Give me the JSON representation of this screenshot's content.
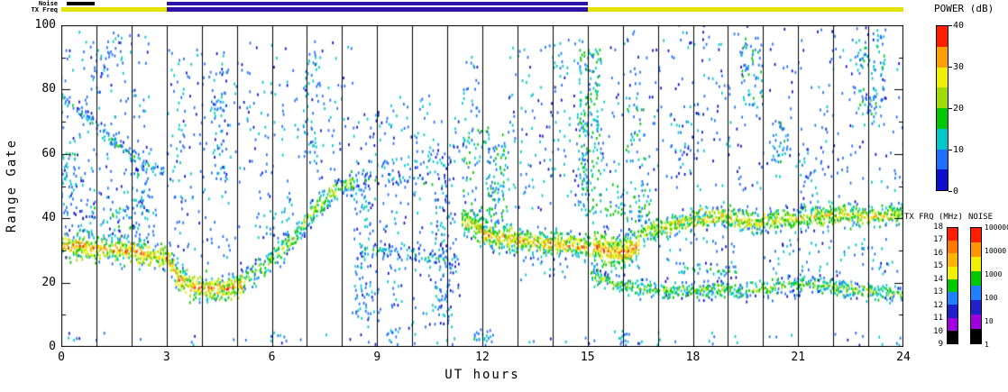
{
  "figure": {
    "x_title": "UT hours",
    "y_title": "Range Gate",
    "power_title": "POWER (dB)",
    "txfrq_title": "TX FRQ (MHz)",
    "noise_title": "NOISE",
    "noise_strip_label": "Noise",
    "tx_strip_label": "TX Freq"
  },
  "chart_data": {
    "type": "heatmap",
    "xlabel": "UT hours",
    "ylabel": "Range Gate",
    "xlim": [
      0,
      24
    ],
    "ylim": [
      0,
      100
    ],
    "x_ticks": [
      0,
      3,
      6,
      9,
      12,
      15,
      18,
      21,
      24
    ],
    "y_ticks": [
      0,
      20,
      40,
      60,
      80,
      100
    ],
    "x_gridline_interval_hours": 1,
    "render_seed": 1337,
    "colorbars": {
      "power": {
        "title": "POWER (dB)",
        "range": [
          0,
          40
        ],
        "ticks": [
          0,
          10,
          20,
          30,
          40
        ],
        "colors_low_to_high": [
          "#0E0ECD",
          "#1E6EFF",
          "#00C8C8",
          "#00C800",
          "#A0DC00",
          "#F0F000",
          "#FFA000",
          "#FF1E00"
        ]
      },
      "tx_frequency": {
        "title": "TX FRQ (MHz)",
        "range": [
          9,
          18
        ],
        "ticks": [
          9,
          10,
          11,
          12,
          13,
          14,
          15,
          16,
          17,
          18
        ],
        "colors_low_to_high": [
          "#000000",
          "#A000DC",
          "#2020C8",
          "#2080FF",
          "#00C800",
          "#F0F000",
          "#FFB400",
          "#FF7800",
          "#FF1E00"
        ]
      },
      "noise": {
        "title": "NOISE",
        "ticks": [
          1,
          10,
          100,
          1000,
          10000,
          100000
        ],
        "colors_low_to_high": [
          "#000000",
          "#A000DC",
          "#2020C8",
          "#2080FF",
          "#00C800",
          "#F0F000",
          "#FF9600",
          "#FF1E00"
        ]
      }
    },
    "noise_strip_segments": [
      {
        "h0": 0.15,
        "h1": 0.95,
        "color": "#000000"
      },
      {
        "h0": 3,
        "h1": 15,
        "color": "#2D12A8"
      }
    ],
    "tx_strip_segments": [
      {
        "h0": 0,
        "h1": 3,
        "color": "#E3E300"
      },
      {
        "h0": 3,
        "h1": 15,
        "color": "#2D12A8"
      },
      {
        "h0": 15,
        "h1": 24,
        "color": "#E3E300"
      }
    ],
    "echo_bands": [
      {
        "path": [
          [
            0,
            31
          ],
          [
            1.2,
            30
          ],
          [
            2.2,
            29
          ],
          [
            3.0,
            27
          ],
          [
            3.3,
            21
          ],
          [
            3.7,
            18
          ],
          [
            4.6,
            17.5
          ],
          [
            5.2,
            19
          ]
        ],
        "width": 4,
        "density": 0.85,
        "power_mean": 30,
        "power_spread": 9
      },
      {
        "path": [
          [
            5.2,
            20
          ],
          [
            6,
            27
          ],
          [
            6.6,
            33
          ],
          [
            7.1,
            41
          ],
          [
            7.7,
            47
          ],
          [
            8.3,
            51
          ]
        ],
        "width": 4,
        "density": 0.6,
        "power_mean": 22,
        "power_spread": 8
      },
      {
        "path": [
          [
            8.3,
            51
          ],
          [
            9.6,
            52
          ],
          [
            10.6,
            50
          ]
        ],
        "width": 3,
        "density": 0.22,
        "power_mean": 11,
        "power_spread": 6
      },
      {
        "path": [
          [
            8.5,
            30
          ],
          [
            9.5,
            29
          ],
          [
            10.6,
            27
          ],
          [
            11.3,
            26
          ]
        ],
        "width": 3,
        "density": 0.3,
        "power_mean": 12,
        "power_spread": 7
      },
      {
        "path": [
          [
            11.4,
            39
          ],
          [
            12.0,
            35
          ],
          [
            12.8,
            33
          ],
          [
            13.6,
            32
          ],
          [
            14.5,
            31
          ],
          [
            15.05,
            30
          ]
        ],
        "width": 4,
        "density": 0.85,
        "power_mean": 28,
        "power_spread": 9
      },
      {
        "path": [
          [
            15.15,
            31
          ],
          [
            15.6,
            29
          ],
          [
            16.0,
            29
          ],
          [
            16.45,
            31
          ]
        ],
        "width": 5.5,
        "density": 0.95,
        "power_mean": 33,
        "power_spread": 7
      },
      {
        "path": [
          [
            16.5,
            35
          ],
          [
            17.2,
            37
          ],
          [
            18,
            39
          ],
          [
            19,
            40
          ],
          [
            19.8,
            38
          ],
          [
            20.6,
            39
          ],
          [
            21.4,
            40
          ],
          [
            22.2,
            41
          ],
          [
            23,
            40
          ],
          [
            24,
            41
          ]
        ],
        "width": 3.5,
        "density": 0.8,
        "power_mean": 25,
        "power_spread": 9
      },
      {
        "path": [
          [
            15.1,
            22
          ],
          [
            15.8,
            19
          ],
          [
            16.5,
            17.5
          ],
          [
            17.5,
            17
          ],
          [
            18.5,
            17.5
          ],
          [
            19.5,
            17
          ],
          [
            20.3,
            18
          ],
          [
            21,
            19
          ],
          [
            21.8,
            18.5
          ],
          [
            22.5,
            17.5
          ],
          [
            23.2,
            16.5
          ],
          [
            24,
            16
          ]
        ],
        "width": 2.8,
        "density": 0.7,
        "power_mean": 19,
        "power_spread": 7
      },
      {
        "path": [
          [
            17.6,
            24
          ],
          [
            18.4,
            23.5
          ],
          [
            19.2,
            23
          ]
        ],
        "width": 1.8,
        "density": 0.5,
        "power_mean": 14,
        "power_spread": 5
      },
      {
        "path": [
          [
            0,
            77
          ],
          [
            0.8,
            70
          ],
          [
            1.6,
            62
          ],
          [
            2.4,
            56
          ],
          [
            2.9,
            54
          ]
        ],
        "width": 3,
        "density": 0.45,
        "power_mean": 13,
        "power_spread": 6
      }
    ],
    "scatter_cloud_fields": [
      "h0",
      "h1",
      "g0",
      "g1",
      "density",
      "power_mean",
      "power_spread"
    ],
    "scatter_clouds": [
      [
        0,
        2.6,
        38,
        98,
        0.05,
        8,
        5
      ],
      [
        0,
        2.7,
        33,
        44,
        0.1,
        10,
        6
      ],
      [
        0.9,
        1.45,
        83,
        93,
        0.13,
        10,
        5
      ],
      [
        0,
        0.4,
        40,
        60,
        0.12,
        10,
        6
      ],
      [
        2.0,
        2.5,
        40,
        55,
        0.12,
        10,
        6
      ],
      [
        3,
        5.2,
        25,
        92,
        0.04,
        8,
        5
      ],
      [
        3.2,
        3.55,
        55,
        80,
        0.08,
        9,
        5
      ],
      [
        4.2,
        4.75,
        50,
        88,
        0.1,
        9,
        5
      ],
      [
        5.2,
        8.3,
        50,
        95,
        0.035,
        8,
        5
      ],
      [
        5.5,
        6.6,
        32,
        48,
        0.07,
        9,
        5
      ],
      [
        6.9,
        7.35,
        58,
        92,
        0.1,
        9,
        5
      ],
      [
        8.3,
        11.35,
        5,
        72,
        0.045,
        8,
        5
      ],
      [
        8.35,
        8.8,
        8,
        55,
        0.1,
        9,
        5
      ],
      [
        9.0,
        10.6,
        55,
        78,
        0.04,
        9,
        6
      ],
      [
        10.65,
        11.1,
        5,
        62,
        0.14,
        9,
        6
      ],
      [
        11.4,
        12.7,
        36,
        68,
        0.1,
        12,
        7
      ],
      [
        11.4,
        11.9,
        55,
        90,
        0.08,
        9,
        5
      ],
      [
        12.1,
        12.6,
        38,
        62,
        0.16,
        13,
        7
      ],
      [
        12.7,
        15.0,
        42,
        95,
        0.05,
        9,
        6
      ],
      [
        13.0,
        14.6,
        20,
        27,
        0.06,
        9,
        5
      ],
      [
        14.75,
        15.35,
        40,
        92,
        0.22,
        13,
        7
      ],
      [
        15.4,
        24,
        48,
        100,
        0.03,
        7,
        5
      ],
      [
        15.5,
        16.8,
        38,
        50,
        0.13,
        13,
        6
      ],
      [
        16.1,
        16.65,
        56,
        76,
        0.12,
        11,
        6
      ],
      [
        17.0,
        19.3,
        25,
        34,
        0.05,
        9,
        5
      ],
      [
        17.3,
        18.3,
        55,
        75,
        0.05,
        9,
        5
      ],
      [
        19.35,
        19.95,
        74,
        96,
        0.16,
        12,
        7
      ],
      [
        20.25,
        20.7,
        52,
        70,
        0.1,
        10,
        6
      ],
      [
        21.0,
        21.55,
        42,
        60,
        0.08,
        10,
        5
      ],
      [
        20.0,
        23.8,
        22,
        33,
        0.05,
        9,
        5
      ],
      [
        22.55,
        23.45,
        68,
        96,
        0.12,
        11,
        6
      ],
      [
        0.2,
        24,
        0,
        4,
        0.03,
        9,
        5
      ],
      [
        5.9,
        6.45,
        0,
        4,
        0.14,
        9,
        5
      ],
      [
        9.25,
        9.6,
        0,
        5,
        0.18,
        10,
        5
      ],
      [
        11.75,
        12.3,
        0,
        5,
        0.28,
        11,
        6
      ],
      [
        15.75,
        16.15,
        0,
        5,
        0.18,
        10,
        5
      ]
    ]
  }
}
